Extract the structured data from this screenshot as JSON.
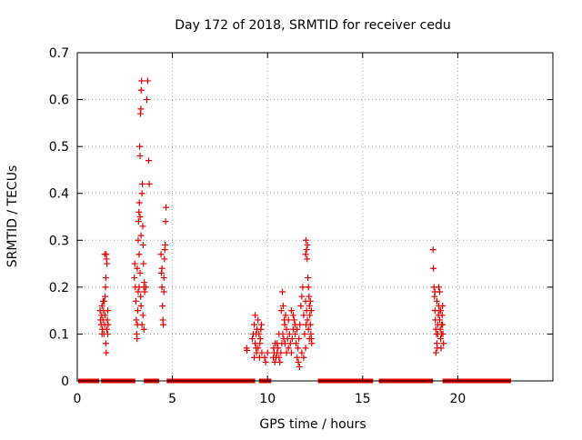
{
  "chart_data": {
    "type": "scatter",
    "title": "Day 172 of 2018, SRMTID for receiver cedu",
    "xlabel": "GPS time / hours",
    "ylabel": "SRMTID / TECUs",
    "xlim": [
      0,
      25
    ],
    "ylim": [
      0,
      0.7
    ],
    "xticks": [
      0,
      5,
      10,
      15,
      20
    ],
    "xtick_labels": [
      "0",
      "5",
      "10",
      "15",
      "20"
    ],
    "yticks": [
      0,
      0.1,
      0.2,
      0.3,
      0.4,
      0.5,
      0.6,
      0.7
    ],
    "ytick_labels": [
      "0",
      "0.1",
      "0.2",
      "0.3",
      "0.4",
      "0.5",
      "0.6",
      "0.7"
    ],
    "grid": true,
    "marker": "+",
    "color": "#e00000",
    "series": [
      {
        "name": "SRMTID",
        "zero_segments": [
          [
            0.05,
            1.15
          ],
          [
            1.25,
            1.65
          ],
          [
            1.65,
            3.05
          ],
          [
            3.5,
            4.3
          ],
          [
            4.7,
            9.35
          ],
          [
            9.55,
            10.2
          ],
          [
            12.65,
            15.55
          ],
          [
            15.85,
            18.7
          ],
          [
            19.2,
            22.8
          ]
        ],
        "points": [
          [
            1.2,
            0.15
          ],
          [
            1.22,
            0.13
          ],
          [
            1.25,
            0.12
          ],
          [
            1.28,
            0.14
          ],
          [
            1.3,
            0.16
          ],
          [
            1.32,
            0.11
          ],
          [
            1.35,
            0.13
          ],
          [
            1.38,
            0.15
          ],
          [
            1.4,
            0.1
          ],
          [
            1.42,
            0.17
          ],
          [
            1.44,
            0.12
          ],
          [
            1.46,
            0.14
          ],
          [
            1.48,
            0.2
          ],
          [
            1.5,
            0.22
          ],
          [
            1.52,
            0.27
          ],
          [
            1.54,
            0.26
          ],
          [
            1.56,
            0.25
          ],
          [
            1.5,
            0.08
          ],
          [
            1.52,
            0.06
          ],
          [
            1.55,
            0.11
          ],
          [
            1.58,
            0.13
          ],
          [
            1.6,
            0.15
          ],
          [
            1.62,
            0.12
          ],
          [
            1.44,
            0.27
          ],
          [
            1.36,
            0.17
          ],
          [
            1.46,
            0.18
          ],
          [
            1.3,
            0.1
          ],
          [
            1.6,
            0.1
          ],
          [
            3.0,
            0.22
          ],
          [
            3.02,
            0.25
          ],
          [
            3.05,
            0.2
          ],
          [
            3.08,
            0.17
          ],
          [
            3.1,
            0.13
          ],
          [
            3.12,
            0.1
          ],
          [
            3.14,
            0.09
          ],
          [
            3.16,
            0.12
          ],
          [
            3.18,
            0.15
          ],
          [
            3.2,
            0.3
          ],
          [
            3.22,
            0.34
          ],
          [
            3.24,
            0.36
          ],
          [
            3.26,
            0.38
          ],
          [
            3.28,
            0.5
          ],
          [
            3.3,
            0.48
          ],
          [
            3.32,
            0.57
          ],
          [
            3.34,
            0.58
          ],
          [
            3.36,
            0.62
          ],
          [
            3.38,
            0.64
          ],
          [
            3.4,
            0.4
          ],
          [
            3.42,
            0.42
          ],
          [
            3.44,
            0.33
          ],
          [
            3.46,
            0.29
          ],
          [
            3.48,
            0.25
          ],
          [
            3.5,
            0.2
          ],
          [
            3.52,
            0.21
          ],
          [
            3.54,
            0.19
          ],
          [
            3.2,
            0.19
          ],
          [
            3.25,
            0.27
          ],
          [
            3.3,
            0.23
          ],
          [
            3.35,
            0.16
          ],
          [
            3.4,
            0.12
          ],
          [
            3.45,
            0.14
          ],
          [
            3.5,
            0.11
          ],
          [
            3.15,
            0.24
          ],
          [
            3.35,
            0.31
          ],
          [
            3.3,
            0.35
          ],
          [
            3.6,
            0.2
          ],
          [
            3.65,
            0.6
          ],
          [
            3.7,
            0.64
          ],
          [
            3.75,
            0.47
          ],
          [
            3.78,
            0.42
          ],
          [
            3.25,
            0.2
          ],
          [
            3.33,
            0.18
          ],
          [
            4.4,
            0.27
          ],
          [
            4.42,
            0.23
          ],
          [
            4.45,
            0.2
          ],
          [
            4.48,
            0.16
          ],
          [
            4.5,
            0.13
          ],
          [
            4.52,
            0.12
          ],
          [
            4.55,
            0.22
          ],
          [
            4.58,
            0.26
          ],
          [
            4.6,
            0.28
          ],
          [
            4.62,
            0.29
          ],
          [
            4.64,
            0.34
          ],
          [
            4.66,
            0.37
          ],
          [
            4.45,
            0.24
          ],
          [
            4.55,
            0.19
          ],
          [
            8.9,
            0.07
          ],
          [
            8.92,
            0.065
          ],
          [
            9.2,
            0.09
          ],
          [
            9.25,
            0.1
          ],
          [
            9.3,
            0.12
          ],
          [
            9.35,
            0.08
          ],
          [
            9.4,
            0.07
          ],
          [
            9.42,
            0.06
          ],
          [
            9.45,
            0.11
          ],
          [
            9.5,
            0.13
          ],
          [
            9.55,
            0.1
          ],
          [
            9.6,
            0.08
          ],
          [
            9.62,
            0.09
          ],
          [
            9.65,
            0.11
          ],
          [
            9.68,
            0.12
          ],
          [
            9.7,
            0.06
          ],
          [
            9.35,
            0.14
          ],
          [
            9.5,
            0.07
          ],
          [
            9.58,
            0.05
          ],
          [
            9.4,
            0.1
          ],
          [
            9.3,
            0.05
          ],
          [
            9.85,
            0.05
          ],
          [
            9.9,
            0.04
          ],
          [
            10.0,
            0.06
          ],
          [
            10.3,
            0.05
          ],
          [
            10.32,
            0.07
          ],
          [
            10.35,
            0.06
          ],
          [
            10.38,
            0.04
          ],
          [
            10.4,
            0.08
          ],
          [
            10.45,
            0.05
          ],
          [
            10.5,
            0.06
          ],
          [
            10.55,
            0.07
          ],
          [
            10.6,
            0.05
          ],
          [
            10.65,
            0.04
          ],
          [
            10.7,
            0.06
          ],
          [
            10.75,
            0.08
          ],
          [
            10.8,
            0.1
          ],
          [
            10.85,
            0.09
          ],
          [
            10.9,
            0.12
          ],
          [
            10.95,
            0.14
          ],
          [
            11.0,
            0.11
          ],
          [
            10.72,
            0.15
          ],
          [
            10.78,
            0.19
          ],
          [
            10.82,
            0.16
          ],
          [
            10.88,
            0.13
          ],
          [
            10.92,
            0.08
          ],
          [
            11.05,
            0.09
          ],
          [
            11.1,
            0.07
          ],
          [
            11.15,
            0.1
          ],
          [
            11.2,
            0.08
          ],
          [
            11.25,
            0.06
          ],
          [
            11.3,
            0.09
          ],
          [
            11.35,
            0.11
          ],
          [
            11.4,
            0.13
          ],
          [
            11.45,
            0.1
          ],
          [
            11.5,
            0.08
          ],
          [
            11.55,
            0.05
          ],
          [
            11.6,
            0.07
          ],
          [
            11.65,
            0.09
          ],
          [
            11.7,
            0.12
          ],
          [
            11.75,
            0.16
          ],
          [
            11.8,
            0.18
          ],
          [
            11.85,
            0.2
          ],
          [
            11.9,
            0.14
          ],
          [
            11.95,
            0.1
          ],
          [
            12.0,
            0.07
          ],
          [
            11.62,
            0.04
          ],
          [
            11.68,
            0.03
          ],
          [
            11.25,
            0.15
          ],
          [
            11.35,
            0.14
          ],
          [
            11.45,
            0.12
          ],
          [
            11.55,
            0.11
          ],
          [
            11.8,
            0.06
          ],
          [
            11.9,
            0.05
          ],
          [
            10.6,
            0.1
          ],
          [
            10.5,
            0.08
          ],
          [
            11.0,
            0.06
          ],
          [
            11.1,
            0.13
          ],
          [
            12.0,
            0.27
          ],
          [
            12.02,
            0.3
          ],
          [
            12.05,
            0.28
          ],
          [
            12.08,
            0.26
          ],
          [
            12.1,
            0.29
          ],
          [
            12.12,
            0.22
          ],
          [
            12.15,
            0.2
          ],
          [
            12.18,
            0.18
          ],
          [
            12.2,
            0.16
          ],
          [
            12.22,
            0.14
          ],
          [
            12.25,
            0.12
          ],
          [
            12.28,
            0.1
          ],
          [
            12.3,
            0.09
          ],
          [
            12.32,
            0.08
          ],
          [
            12.05,
            0.15
          ],
          [
            12.1,
            0.13
          ],
          [
            12.15,
            0.11
          ],
          [
            12.2,
            0.09
          ],
          [
            12.25,
            0.17
          ],
          [
            12.3,
            0.15
          ],
          [
            12.0,
            0.17
          ],
          [
            12.02,
            0.12
          ],
          [
            18.7,
            0.28
          ],
          [
            18.72,
            0.24
          ],
          [
            18.75,
            0.2
          ],
          [
            18.78,
            0.18
          ],
          [
            18.8,
            0.15
          ],
          [
            18.82,
            0.13
          ],
          [
            18.85,
            0.11
          ],
          [
            18.88,
            0.1
          ],
          [
            18.9,
            0.08
          ],
          [
            18.92,
            0.07
          ],
          [
            18.95,
            0.12
          ],
          [
            18.98,
            0.14
          ],
          [
            19.0,
            0.16
          ],
          [
            19.02,
            0.15
          ],
          [
            19.05,
            0.13
          ],
          [
            19.08,
            0.11
          ],
          [
            19.1,
            0.09
          ],
          [
            19.12,
            0.07
          ],
          [
            19.15,
            0.12
          ],
          [
            19.18,
            0.14
          ],
          [
            19.2,
            0.16
          ],
          [
            19.22,
            0.1
          ],
          [
            19.25,
            0.08
          ],
          [
            18.85,
            0.06
          ],
          [
            18.9,
            0.17
          ],
          [
            18.8,
            0.19
          ],
          [
            19.0,
            0.2
          ],
          [
            19.05,
            0.19
          ],
          [
            18.95,
            0.1
          ],
          [
            19.1,
            0.15
          ],
          [
            19.15,
            0.1
          ],
          [
            19.2,
            0.12
          ]
        ]
      }
    ]
  }
}
